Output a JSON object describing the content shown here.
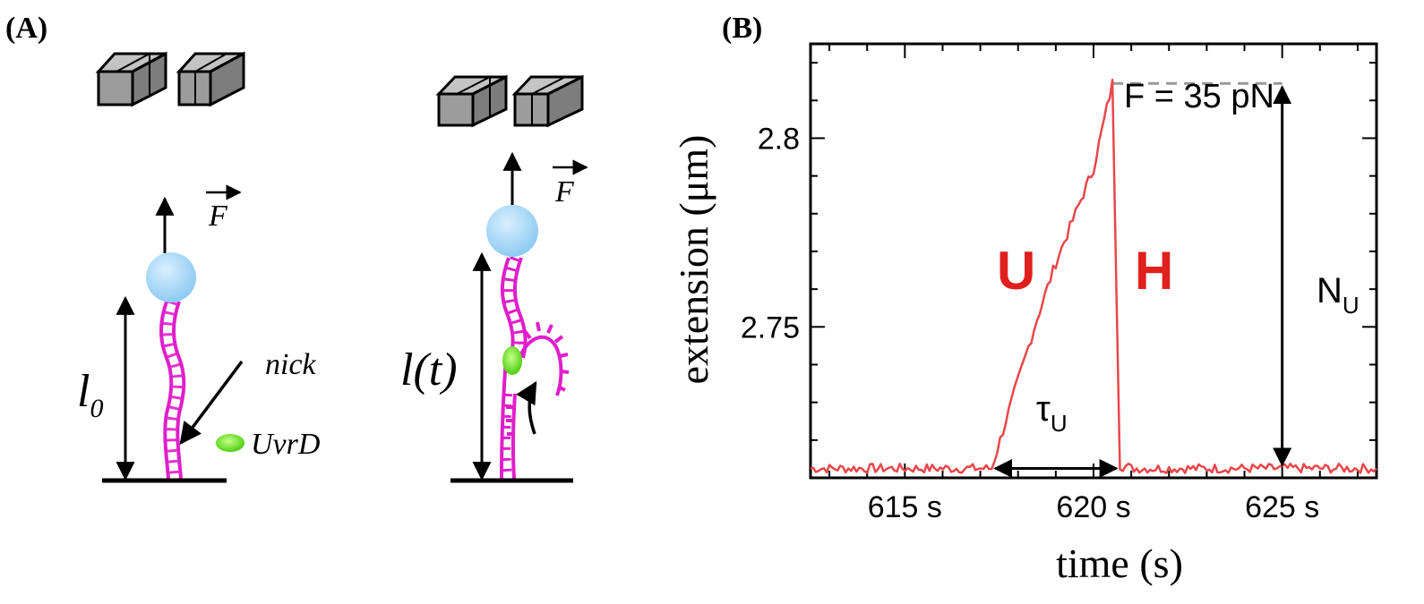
{
  "panel_a": {
    "label": "(A)",
    "left_diagram": {
      "force_symbol": "F",
      "length_symbol": "l",
      "length_subscript": "0",
      "nick_label": "nick",
      "enzyme_label": "UvrD"
    },
    "right_diagram": {
      "force_symbol": "F",
      "length_label": "l(t)"
    },
    "colors": {
      "dna": "#e01ecb",
      "bead": "#a9d8f5",
      "enzyme": "#5fdc1e",
      "magnet": "#9a9a9a"
    }
  },
  "panel_b": {
    "label": "(B)",
    "force_label": "F = 35 pN",
    "state_u": "U",
    "state_h": "H",
    "tau_symbol": "τ",
    "tau_subscript": "U",
    "n_symbol": "N",
    "n_subscript": "U",
    "colors": {
      "trace": "#e8474a",
      "state_text": "#e0201c",
      "dashed": "#999999"
    }
  },
  "chart_data": {
    "type": "line",
    "title": "",
    "xlabel": "time (s)",
    "ylabel": "extension (μm)",
    "xlim": [
      612.5,
      627.5
    ],
    "ylim": [
      2.71,
      2.825
    ],
    "x_ticks": [
      615,
      620,
      625
    ],
    "x_tick_labels": [
      "615 s",
      "620 s",
      "625 s"
    ],
    "y_ticks": [
      2.75,
      2.8
    ],
    "y_tick_labels": [
      "2.75",
      "2.8"
    ],
    "series": [
      {
        "name": "extension trace",
        "baseline": 2.7125,
        "x": [
          612.5,
          617.3,
          617.9,
          618.5,
          619.0,
          619.6,
          620.0,
          620.5,
          620.7,
          621.0,
          627.5
        ],
        "y": [
          2.7125,
          2.7125,
          2.7325,
          2.752,
          2.767,
          2.782,
          2.792,
          2.8145,
          2.7135,
          2.7125,
          2.7125
        ]
      }
    ],
    "annotations": {
      "tau_u": {
        "x_start": 617.3,
        "x_end": 620.7,
        "y": 2.7125
      },
      "n_u": {
        "x": 625,
        "y_start": 2.7125,
        "y_end": 2.8145
      },
      "dashed_level": {
        "x_start": 620.5,
        "x_end": 625,
        "y": 2.8145
      }
    }
  }
}
